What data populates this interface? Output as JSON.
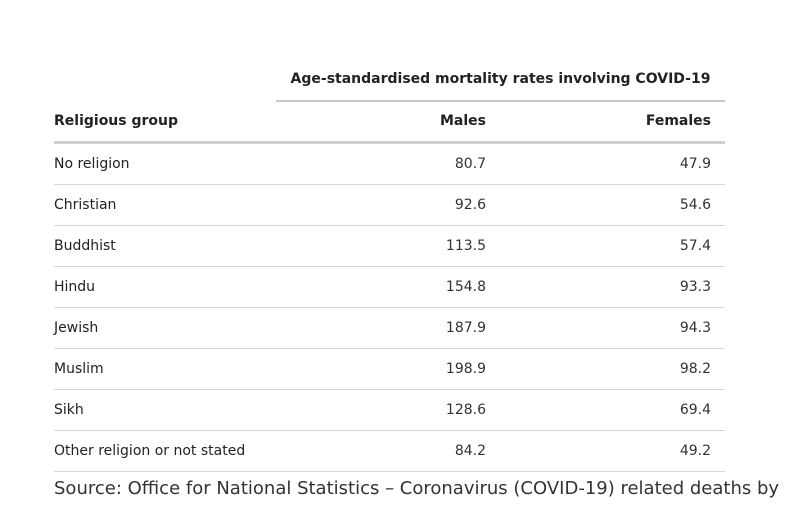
{
  "table": {
    "group_header": "Age-standardised mortality rates involving COVID-19",
    "columns": {
      "group": "Religious group",
      "males": "Males",
      "females": "Females"
    },
    "rows": [
      {
        "group": "No religion",
        "males": "80.7",
        "females": "47.9"
      },
      {
        "group": "Christian",
        "males": "92.6",
        "females": "54.6"
      },
      {
        "group": "Buddhist",
        "males": "113.5",
        "females": "57.4"
      },
      {
        "group": "Hindu",
        "males": "154.8",
        "females": "93.3"
      },
      {
        "group": "Jewish",
        "males": "187.9",
        "females": "94.3"
      },
      {
        "group": "Muslim",
        "males": "198.9",
        "females": "98.2"
      },
      {
        "group": "Sikh",
        "males": "128.6",
        "females": "69.4"
      },
      {
        "group": "Other religion or not stated",
        "males": "84.2",
        "females": "49.2"
      }
    ]
  },
  "source": "Source: Office for National Statistics – Coronavirus (COVID-19) related deaths by"
}
